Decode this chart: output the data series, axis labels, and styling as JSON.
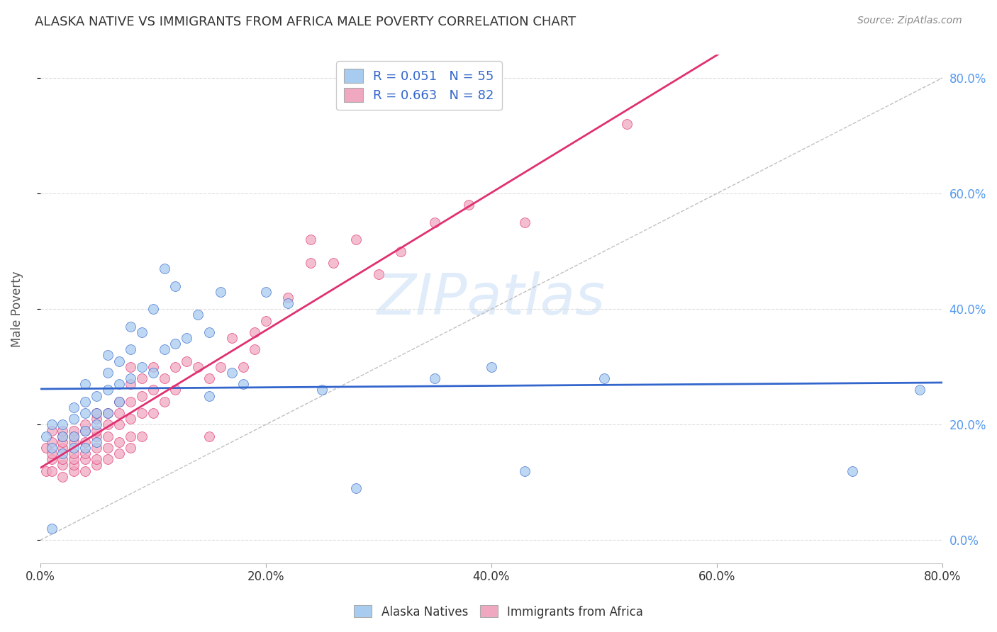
{
  "title": "ALASKA NATIVE VS IMMIGRANTS FROM AFRICA MALE POVERTY CORRELATION CHART",
  "source": "Source: ZipAtlas.com",
  "ylabel": "Male Poverty",
  "xmin": 0.0,
  "xmax": 0.8,
  "ymin": -0.04,
  "ymax": 0.84,
  "watermark": "ZIPatlas",
  "legend_R1": "R = 0.051",
  "legend_N1": "N = 55",
  "legend_R2": "R = 0.663",
  "legend_N2": "N = 82",
  "color_blue": "#a8ccf0",
  "color_pink": "#f0a8c0",
  "line_blue": "#3366cc",
  "line_pink": "#e03070",
  "line_dashed": "#c0c0c0",
  "alaska_x": [
    0.005,
    0.01,
    0.01,
    0.01,
    0.02,
    0.02,
    0.02,
    0.03,
    0.03,
    0.03,
    0.03,
    0.04,
    0.04,
    0.04,
    0.04,
    0.04,
    0.05,
    0.05,
    0.05,
    0.05,
    0.06,
    0.06,
    0.06,
    0.06,
    0.07,
    0.07,
    0.07,
    0.08,
    0.08,
    0.08,
    0.09,
    0.09,
    0.1,
    0.1,
    0.11,
    0.11,
    0.12,
    0.12,
    0.13,
    0.14,
    0.15,
    0.15,
    0.16,
    0.17,
    0.18,
    0.2,
    0.22,
    0.25,
    0.28,
    0.35,
    0.4,
    0.43,
    0.5,
    0.72,
    0.78
  ],
  "alaska_y": [
    0.18,
    0.02,
    0.16,
    0.2,
    0.15,
    0.18,
    0.2,
    0.16,
    0.18,
    0.21,
    0.23,
    0.16,
    0.19,
    0.22,
    0.24,
    0.27,
    0.17,
    0.2,
    0.22,
    0.25,
    0.22,
    0.26,
    0.29,
    0.32,
    0.24,
    0.27,
    0.31,
    0.28,
    0.33,
    0.37,
    0.3,
    0.36,
    0.29,
    0.4,
    0.33,
    0.47,
    0.34,
    0.44,
    0.35,
    0.39,
    0.25,
    0.36,
    0.43,
    0.29,
    0.27,
    0.43,
    0.41,
    0.26,
    0.09,
    0.28,
    0.3,
    0.12,
    0.28,
    0.12,
    0.26
  ],
  "africa_x": [
    0.005,
    0.005,
    0.01,
    0.01,
    0.01,
    0.01,
    0.01,
    0.02,
    0.02,
    0.02,
    0.02,
    0.02,
    0.02,
    0.02,
    0.03,
    0.03,
    0.03,
    0.03,
    0.03,
    0.03,
    0.03,
    0.04,
    0.04,
    0.04,
    0.04,
    0.04,
    0.04,
    0.05,
    0.05,
    0.05,
    0.05,
    0.05,
    0.05,
    0.05,
    0.06,
    0.06,
    0.06,
    0.06,
    0.06,
    0.07,
    0.07,
    0.07,
    0.07,
    0.07,
    0.08,
    0.08,
    0.08,
    0.08,
    0.08,
    0.08,
    0.09,
    0.09,
    0.09,
    0.09,
    0.1,
    0.1,
    0.1,
    0.11,
    0.11,
    0.12,
    0.12,
    0.13,
    0.14,
    0.15,
    0.15,
    0.16,
    0.17,
    0.18,
    0.19,
    0.19,
    0.2,
    0.22,
    0.24,
    0.24,
    0.26,
    0.28,
    0.3,
    0.32,
    0.35,
    0.38,
    0.43,
    0.52
  ],
  "africa_y": [
    0.12,
    0.16,
    0.12,
    0.14,
    0.15,
    0.17,
    0.19,
    0.11,
    0.13,
    0.14,
    0.16,
    0.17,
    0.18,
    0.19,
    0.12,
    0.13,
    0.14,
    0.15,
    0.17,
    0.18,
    0.19,
    0.12,
    0.14,
    0.15,
    0.17,
    0.19,
    0.2,
    0.13,
    0.14,
    0.16,
    0.18,
    0.19,
    0.21,
    0.22,
    0.14,
    0.16,
    0.18,
    0.2,
    0.22,
    0.15,
    0.17,
    0.2,
    0.22,
    0.24,
    0.16,
    0.18,
    0.21,
    0.24,
    0.27,
    0.3,
    0.18,
    0.22,
    0.25,
    0.28,
    0.22,
    0.26,
    0.3,
    0.24,
    0.28,
    0.26,
    0.3,
    0.31,
    0.3,
    0.18,
    0.28,
    0.3,
    0.35,
    0.3,
    0.33,
    0.36,
    0.38,
    0.42,
    0.48,
    0.52,
    0.48,
    0.52,
    0.46,
    0.5,
    0.55,
    0.58,
    0.55,
    0.72
  ]
}
